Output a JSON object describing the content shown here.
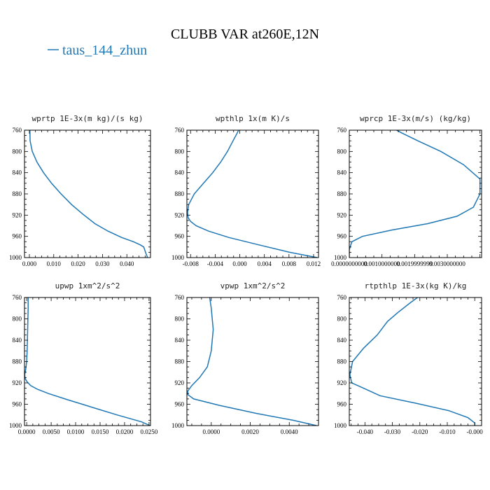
{
  "title": "CLUBB VAR at260E,12N",
  "legend": {
    "label": "taus_144_zhun",
    "color": "#1f77b4"
  },
  "colors": {
    "line": "#1f77b4",
    "axis": "#000000"
  },
  "chart_data": [
    {
      "type": "line",
      "title": "wprtp   1E-3x(m kg)/(s kg)",
      "xlim": [
        -0.002,
        0.0497
      ],
      "ylim": [
        760,
        1000
      ],
      "y_inverted": true,
      "xticks": [
        0.0,
        0.01,
        0.02,
        0.03,
        0.04
      ],
      "xtick_labels": [
        "0.000",
        "0.010",
        "0.020",
        "0.030",
        "0.040"
      ],
      "yticks": [
        760,
        800,
        840,
        880,
        920,
        960,
        1000
      ],
      "series": [
        {
          "x": [
            0.0002,
            0.0003,
            0.0012,
            0.0031,
            0.0058,
            0.0091,
            0.013,
            0.0173,
            0.0219,
            0.0269,
            0.0322,
            0.0378,
            0.0427,
            0.0455,
            0.0469,
            0.0473,
            0.0478,
            0.0485
          ],
          "y": [
            760,
            780,
            800,
            820,
            840,
            860,
            880,
            900,
            918,
            936,
            950,
            962,
            970,
            976,
            980,
            985,
            992,
            1000
          ]
        }
      ]
    },
    {
      "type": "line",
      "title": "wpthlp   1x(m K)/s",
      "xlim": [
        -0.0086,
        0.0128
      ],
      "ylim": [
        760,
        1000
      ],
      "y_inverted": true,
      "xticks": [
        -0.008,
        -0.004,
        0.0,
        0.004,
        0.008,
        0.012
      ],
      "xtick_labels": [
        "-0.008",
        "-0.004",
        "0.000",
        "0.004",
        "0.008",
        "0.012"
      ],
      "yticks": [
        760,
        800,
        840,
        880,
        920,
        960,
        1000
      ],
      "series": [
        {
          "x": [
            0.0,
            -0.0004,
            -0.0011,
            -0.002,
            -0.0031,
            -0.0044,
            -0.0059,
            -0.0074,
            -0.0083,
            -0.0085,
            -0.0084,
            -0.008,
            -0.0071,
            -0.0051,
            -0.0018,
            0.0031,
            0.0081,
            0.0126
          ],
          "y": [
            755,
            765,
            780,
            800,
            820,
            840,
            860,
            880,
            900,
            915,
            925,
            932,
            940,
            950,
            962,
            976,
            990,
            1000
          ]
        }
      ]
    },
    {
      "type": "line",
      "title": "wprcp   1E-3x(m/s) (kg/kg)",
      "xlim": [
        0.0,
        0.00405
      ],
      "ylim": [
        760,
        1000
      ],
      "y_inverted": true,
      "xticks": [
        0.0,
        0.001,
        0.002,
        0.003
      ],
      "xtick_labels": [
        "0.0000000000",
        "0.0010000000",
        "0.0019999999",
        "0.0030000000"
      ],
      "yticks": [
        760,
        800,
        840,
        880,
        920,
        960,
        1000
      ],
      "series": [
        {
          "x": [
            0.0013,
            0.0016,
            0.0021,
            0.0028,
            0.0035,
            0.004,
            0.004,
            0.0038,
            0.0033,
            0.0024,
            0.0013,
            0.0004,
            8e-05,
            0.0,
            0.0
          ],
          "y": [
            755,
            765,
            780,
            800,
            825,
            852,
            880,
            905,
            922,
            936,
            948,
            960,
            970,
            985,
            1000
          ]
        }
      ]
    },
    {
      "type": "line",
      "title": "upwp   1xm^2/s^2",
      "xlim": [
        -0.00045,
        0.0253
      ],
      "ylim": [
        760,
        1000
      ],
      "y_inverted": true,
      "xticks": [
        0.0,
        0.005,
        0.01,
        0.015,
        0.02,
        0.025
      ],
      "xtick_labels": [
        "0.0000",
        "0.0050",
        "0.0100",
        "0.0150",
        "0.0200",
        "0.0250"
      ],
      "yticks": [
        760,
        800,
        840,
        880,
        920,
        960,
        1000
      ],
      "series": [
        {
          "x": [
            0.0003,
            0.0003,
            0.0002,
            0.0001,
            0.0,
            -0.0002,
            -0.0004,
            -0.0003,
            0.0001,
            0.0008,
            0.0022,
            0.0045,
            0.0085,
            0.0135,
            0.0185,
            0.0235,
            0.0252
          ],
          "y": [
            755,
            780,
            820,
            860,
            880,
            895,
            905,
            912,
            918,
            925,
            932,
            940,
            952,
            966,
            980,
            993,
            1000
          ]
        }
      ]
    },
    {
      "type": "line",
      "title": "vpwp   1xm^2/s^2",
      "xlim": [
        -0.00125,
        0.0055
      ],
      "ylim": [
        760,
        1000
      ],
      "y_inverted": true,
      "xticks": [
        0.0,
        0.002,
        0.004
      ],
      "xtick_labels": [
        "0.0000",
        "0.0020",
        "0.0040"
      ],
      "yticks": [
        760,
        800,
        840,
        880,
        920,
        960,
        1000
      ],
      "series": [
        {
          "x": [
            -0.0001,
            0.0,
            0.0001,
            0.0,
            -0.0002,
            -0.0006,
            -0.001,
            -0.0012,
            -0.0012,
            -0.0009,
            0.0004,
            0.0023,
            0.0042,
            0.0054
          ],
          "y": [
            755,
            780,
            820,
            860,
            890,
            910,
            925,
            935,
            942,
            950,
            962,
            977,
            990,
            1000
          ]
        }
      ]
    },
    {
      "type": "line",
      "title": "rtpthlp   1E-3x(kg K)/kg",
      "xlim": [
        -0.0457,
        0.0025
      ],
      "ylim": [
        760,
        1000
      ],
      "y_inverted": true,
      "xticks": [
        -0.04,
        -0.03,
        -0.02,
        -0.01,
        0.0
      ],
      "xtick_labels": [
        "-0.040",
        "-0.030",
        "-0.020",
        "-0.010",
        "-0.000"
      ],
      "yticks": [
        760,
        800,
        840,
        880,
        920,
        960,
        1000
      ],
      "series": [
        {
          "x": [
            -0.0195,
            -0.0235,
            -0.028,
            -0.0318,
            -0.0355,
            -0.0405,
            -0.0445,
            -0.0455,
            -0.0448,
            -0.0405,
            -0.0345,
            -0.0215,
            -0.0095,
            -0.0025,
            0.0,
            0.0
          ],
          "y": [
            755,
            770,
            788,
            805,
            830,
            855,
            880,
            905,
            920,
            930,
            944,
            958,
            972,
            985,
            995,
            1000
          ]
        }
      ]
    }
  ]
}
